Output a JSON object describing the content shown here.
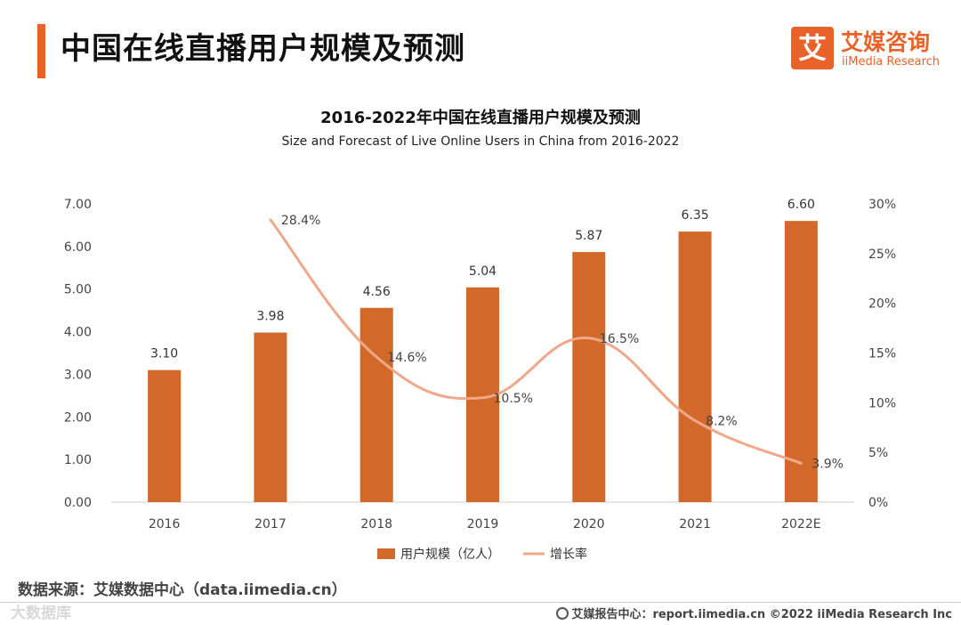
{
  "header": {
    "title": "中国在线直播用户规模及预测",
    "logo_glyph": "艾",
    "logo_cn": "艾媒咨询",
    "logo_en": "iiMedia Research"
  },
  "chart_data": {
    "type": "bar",
    "title": "2016-2022年中国在线直播用户规模及预测",
    "subtitle": "Size and Forecast of Live Online Users in China from 2016-2022",
    "categories": [
      "2016",
      "2017",
      "2018",
      "2019",
      "2020",
      "2021",
      "2022E"
    ],
    "series": [
      {
        "name": "用户规模（亿人）",
        "type": "bar",
        "axis": "left",
        "color": "#d2692a",
        "values": [
          3.1,
          3.98,
          4.56,
          5.04,
          5.87,
          6.35,
          6.6
        ],
        "labels": [
          "3.10",
          "3.98",
          "4.56",
          "5.04",
          "5.87",
          "6.35",
          "6.60"
        ]
      },
      {
        "name": "增长率",
        "type": "line",
        "axis": "right",
        "color": "#f0a78a",
        "values": [
          null,
          28.4,
          14.6,
          10.5,
          16.5,
          8.2,
          3.9
        ],
        "labels": [
          "",
          "28.4%",
          "14.6%",
          "10.5%",
          "16.5%",
          "8.2%",
          "3.9%"
        ]
      }
    ],
    "y_left": {
      "ylim": [
        0,
        7
      ],
      "ticks": [
        "0.00",
        "1.00",
        "2.00",
        "3.00",
        "4.00",
        "5.00",
        "6.00",
        "7.00"
      ]
    },
    "y_right": {
      "ylim": [
        0,
        30
      ],
      "ticks": [
        "0%",
        "5%",
        "10%",
        "15%",
        "20%",
        "25%",
        "30%"
      ]
    },
    "grid": false,
    "legend_position": "bottom"
  },
  "footer": {
    "source": "数据来源：艾媒数据中心（data.iimedia.cn）",
    "watermark": "大数据库",
    "credit": "艾媒报告中心：report.iimedia.cn   ©2022  iiMedia Research  Inc"
  }
}
